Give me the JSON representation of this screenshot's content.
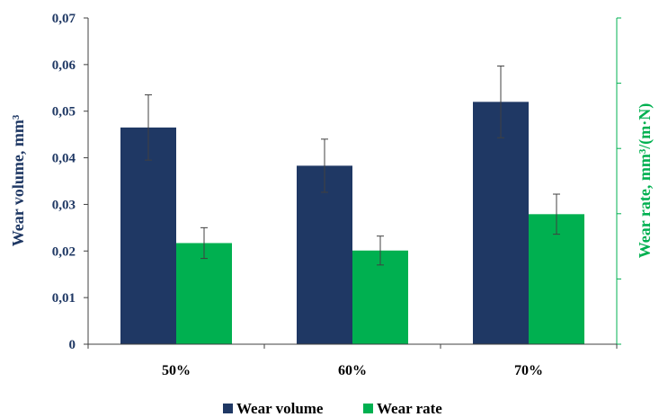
{
  "chart_data": {
    "type": "bar",
    "categories": [
      "50%",
      "60%",
      "70%"
    ],
    "series": [
      {
        "name": "Wear volume",
        "axis": "left",
        "color": "#1F3864",
        "values": [
          0.0465,
          0.0383,
          0.052
        ],
        "errors": [
          0.007,
          0.0057,
          0.0077
        ]
      },
      {
        "name": "Wear rate",
        "axis": "right",
        "color": "#00B050",
        "values": [
          0.0217,
          0.0201,
          0.0279
        ],
        "errors": [
          0.0033,
          0.0031,
          0.0043
        ]
      }
    ],
    "ylabel": "Wear volume, mm³",
    "y2label": "Wear rate, mm³/(m·N)",
    "ylim": [
      0,
      0.07
    ],
    "yticks": [
      "0",
      "0,01",
      "0,02",
      "0,03",
      "0,04",
      "0,05",
      "0,06",
      "0,07"
    ],
    "y2_tick_labels_shown": false,
    "grid": false,
    "legend_position": "bottom"
  }
}
